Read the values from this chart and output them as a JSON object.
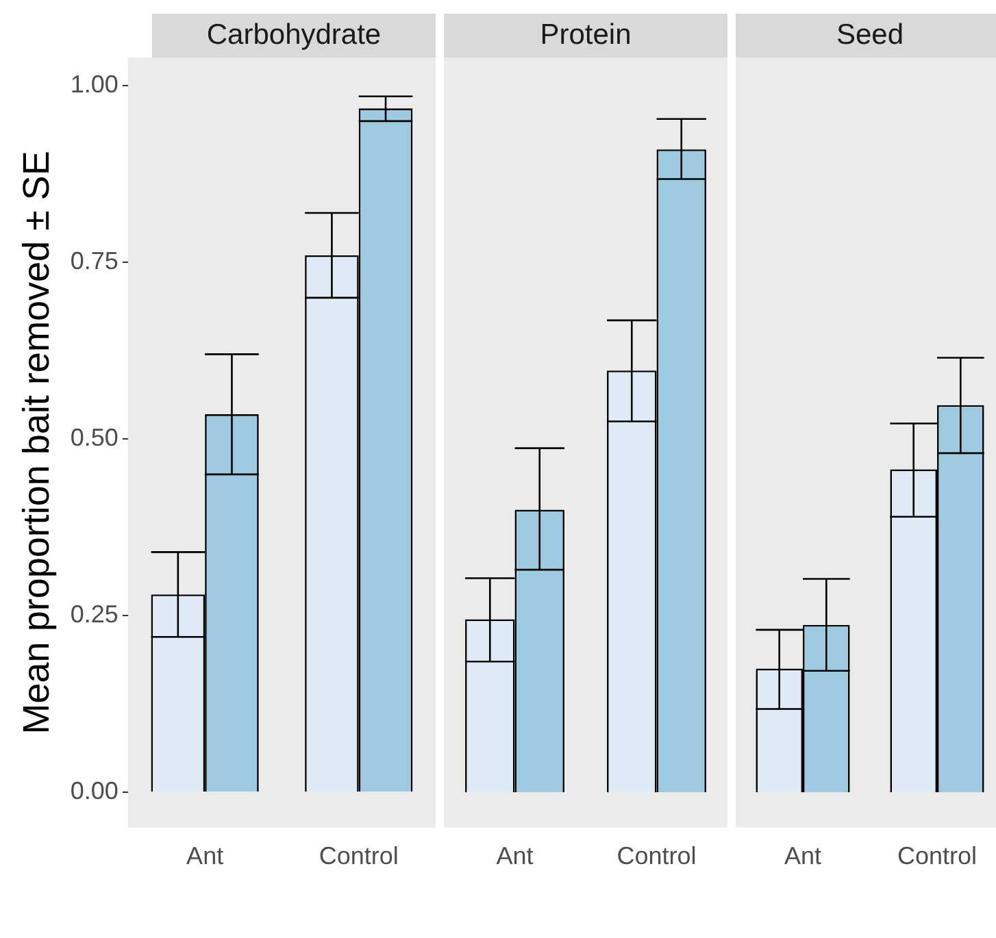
{
  "chart_data": [
    {
      "type": "bar",
      "title": "Carbohydrate",
      "ylabel": "Mean proportion bait removed ± SE",
      "categories": [
        "Ant",
        "Control"
      ],
      "ylim": [
        -0.05,
        1.04
      ],
      "yticks": [
        {
          "value": 0,
          "label": "0.00"
        },
        0.25,
        {
          "value": 0.5,
          "label": "0.50"
        },
        0.75,
        {
          "value": 1,
          "label": "1.00"
        }
      ],
      "grid": false,
      "legend": false,
      "series": [
        {
          "color": "#deebf7",
          "values": [
            0.28,
            0.76
          ],
          "errors": [
            [
              0.22,
              0.34
            ],
            [
              0.7,
              0.82
            ]
          ]
        },
        {
          "color": "#9ecae1",
          "values": [
            0.535,
            0.968
          ],
          "errors": [
            [
              0.45,
              0.62
            ],
            [
              0.95,
              0.985
            ]
          ]
        }
      ]
    },
    {
      "type": "bar",
      "title": "Protein",
      "categories": [
        "Ant",
        "Control"
      ],
      "ylim": [
        -0.05,
        1.04
      ],
      "tick_labels": "x",
      "grid": false,
      "legend": false,
      "series": [
        {
          "color": "#deebf7",
          "values": [
            0.245,
            0.597
          ],
          "errors": [
            [
              0.185,
              0.303
            ],
            [
              0.525,
              0.668
            ]
          ]
        },
        {
          "color": "#9ecae1",
          "values": [
            0.4,
            0.91
          ],
          "errors": [
            [
              0.315,
              0.487
            ],
            [
              0.868,
              0.953
            ]
          ]
        }
      ]
    },
    {
      "type": "bar",
      "title": "Seed",
      "categories": [
        "Ant",
        "Control"
      ],
      "ylim": [
        -0.05,
        1.04
      ],
      "tick_labels": "x",
      "grid": false,
      "legend": false,
      "series": [
        {
          "color": "#deebf7",
          "values": [
            0.175,
            0.457
          ],
          "errors": [
            [
              0.118,
              0.23
            ],
            [
              0.39,
              0.522
            ]
          ]
        },
        {
          "color": "#9ecae1",
          "values": [
            0.237,
            0.548
          ],
          "errors": [
            [
              0.172,
              0.302
            ],
            [
              0.48,
              0.615
            ]
          ]
        }
      ]
    }
  ]
}
